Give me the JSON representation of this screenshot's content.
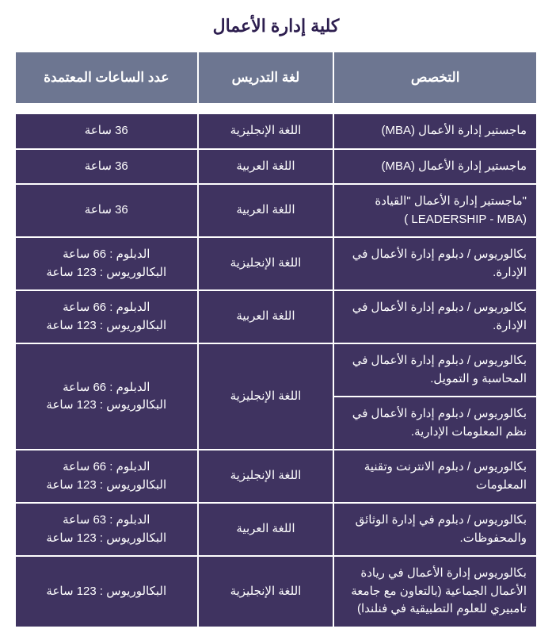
{
  "title": "كلية إدارة الأعمال",
  "colors": {
    "title_color": "#2d1e4f",
    "header_bg": "#6d7691",
    "cell_bg": "#3f3360",
    "text_color": "#ffffff",
    "page_bg": "#ffffff"
  },
  "typography": {
    "title_fontsize": 22,
    "header_fontsize": 17,
    "cell_fontsize": 15
  },
  "columns": {
    "spec": "التخصص",
    "lang": "لغة التدريس",
    "hours": "عدد الساعات المعتمدة"
  },
  "rows": {
    "r1": {
      "spec": "ماجستير إدارة الأعمال (MBA)",
      "lang": "اللغة الإنجليزية",
      "hours": "36 ساعة"
    },
    "r2": {
      "spec": "ماجستير إدارة الأعمال (MBA)",
      "lang": "اللغة العربية",
      "hours": "36 ساعة"
    },
    "r3": {
      "spec": "\"ماجستير إدارة الأعمال \"القيادة (LEADERSHIP - MBA )",
      "lang": "اللغة العربية",
      "hours": "36 ساعة"
    },
    "r4": {
      "spec": "بكالوريوس / دبلوم  إدارة الأعمال في الإدارة.",
      "lang": "اللغة الإنجليزية",
      "hours": "الدبلوم : 66 ساعة\nالبكالوريوس : 123 ساعة"
    },
    "r5": {
      "spec": "بكالوريوس / دبلوم  إدارة الأعمال في الإدارة.",
      "lang": "اللغة العربية",
      "hours": "الدبلوم : 66 ساعة\nالبكالوريوس : 123 ساعة"
    },
    "r6a": {
      "spec": "بكالوريوس / دبلوم إدارة الأعمال في المحاسبة و التمويل."
    },
    "r6b": {
      "spec": "بكالوريوس / دبلوم  إدارة الأعمال في نظم المعلومات الإدارية.",
      "lang": "اللغة الإنجليزية",
      "hours": "الدبلوم : 66 ساعة\nالبكالوريوس : 123 ساعة"
    },
    "r7": {
      "spec": "بكالوريوس / دبلوم  الانترنت وتقنية المعلومات",
      "lang": "اللغة الإنجليزية",
      "hours": "الدبلوم : 66 ساعة\nالبكالوريوس : 123 ساعة"
    },
    "r8": {
      "spec": "بكالوريوس / دبلوم في  إدارة الوثائق والمحفوظات.",
      "lang": "اللغة العربية",
      "hours": "الدبلوم : 63 ساعة\nالبكالوريوس : 123 ساعة"
    },
    "r9": {
      "spec": "بكالوريوس إدارة الأعمال في ريادة الأعمال الجماعية (بالتعاون  مع جامعة تامبيري للعلوم التطبيقية في فنلندا)",
      "lang": "اللغة الإنجليزية",
      "hours": "البكالوريوس : 123 ساعة"
    }
  }
}
